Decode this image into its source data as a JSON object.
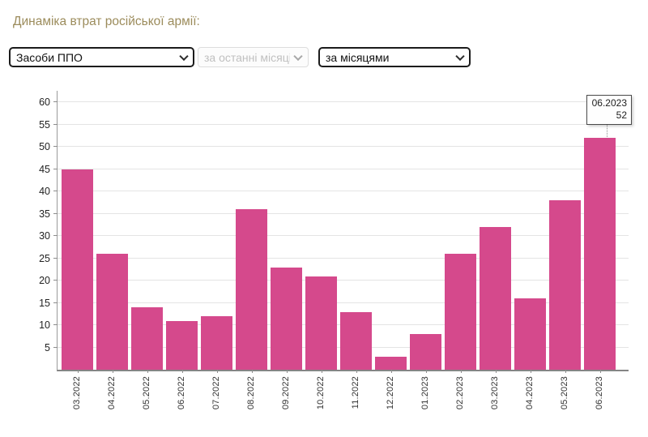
{
  "header": {
    "title": "Динаміка втрат російської армії:",
    "title_color": "#9c8c5c"
  },
  "controls": {
    "category_select": {
      "value": "Засоби ППО",
      "disabled": false
    },
    "period_select": {
      "value": "за останні місяці",
      "disabled": true
    },
    "grouping_select": {
      "value": "за місяцями",
      "disabled": false
    }
  },
  "chart_data": {
    "type": "bar",
    "categories": [
      "03.2022",
      "04.2022",
      "05.2022",
      "06.2022",
      "07.2022",
      "08.2022",
      "09.2022",
      "10.2022",
      "11.2022",
      "12.2022",
      "01.2023",
      "02.2023",
      "03.2023",
      "04.2023",
      "05.2023",
      "06.2023"
    ],
    "values": [
      45,
      26,
      14,
      11,
      12,
      36,
      23,
      21,
      13,
      3,
      8,
      26,
      32,
      16,
      38,
      52
    ],
    "title": "",
    "xlabel": "",
    "ylabel": "",
    "ylim": [
      0,
      62
    ],
    "yticks": [
      5,
      10,
      15,
      20,
      25,
      30,
      35,
      40,
      45,
      50,
      55,
      60
    ],
    "grid": true,
    "legend": "none",
    "bar_color": "#d5498c",
    "gridline_color": "#e4e4e4",
    "tooltip": {
      "label": "06.2023",
      "value": 52,
      "bar_index": 15
    }
  }
}
